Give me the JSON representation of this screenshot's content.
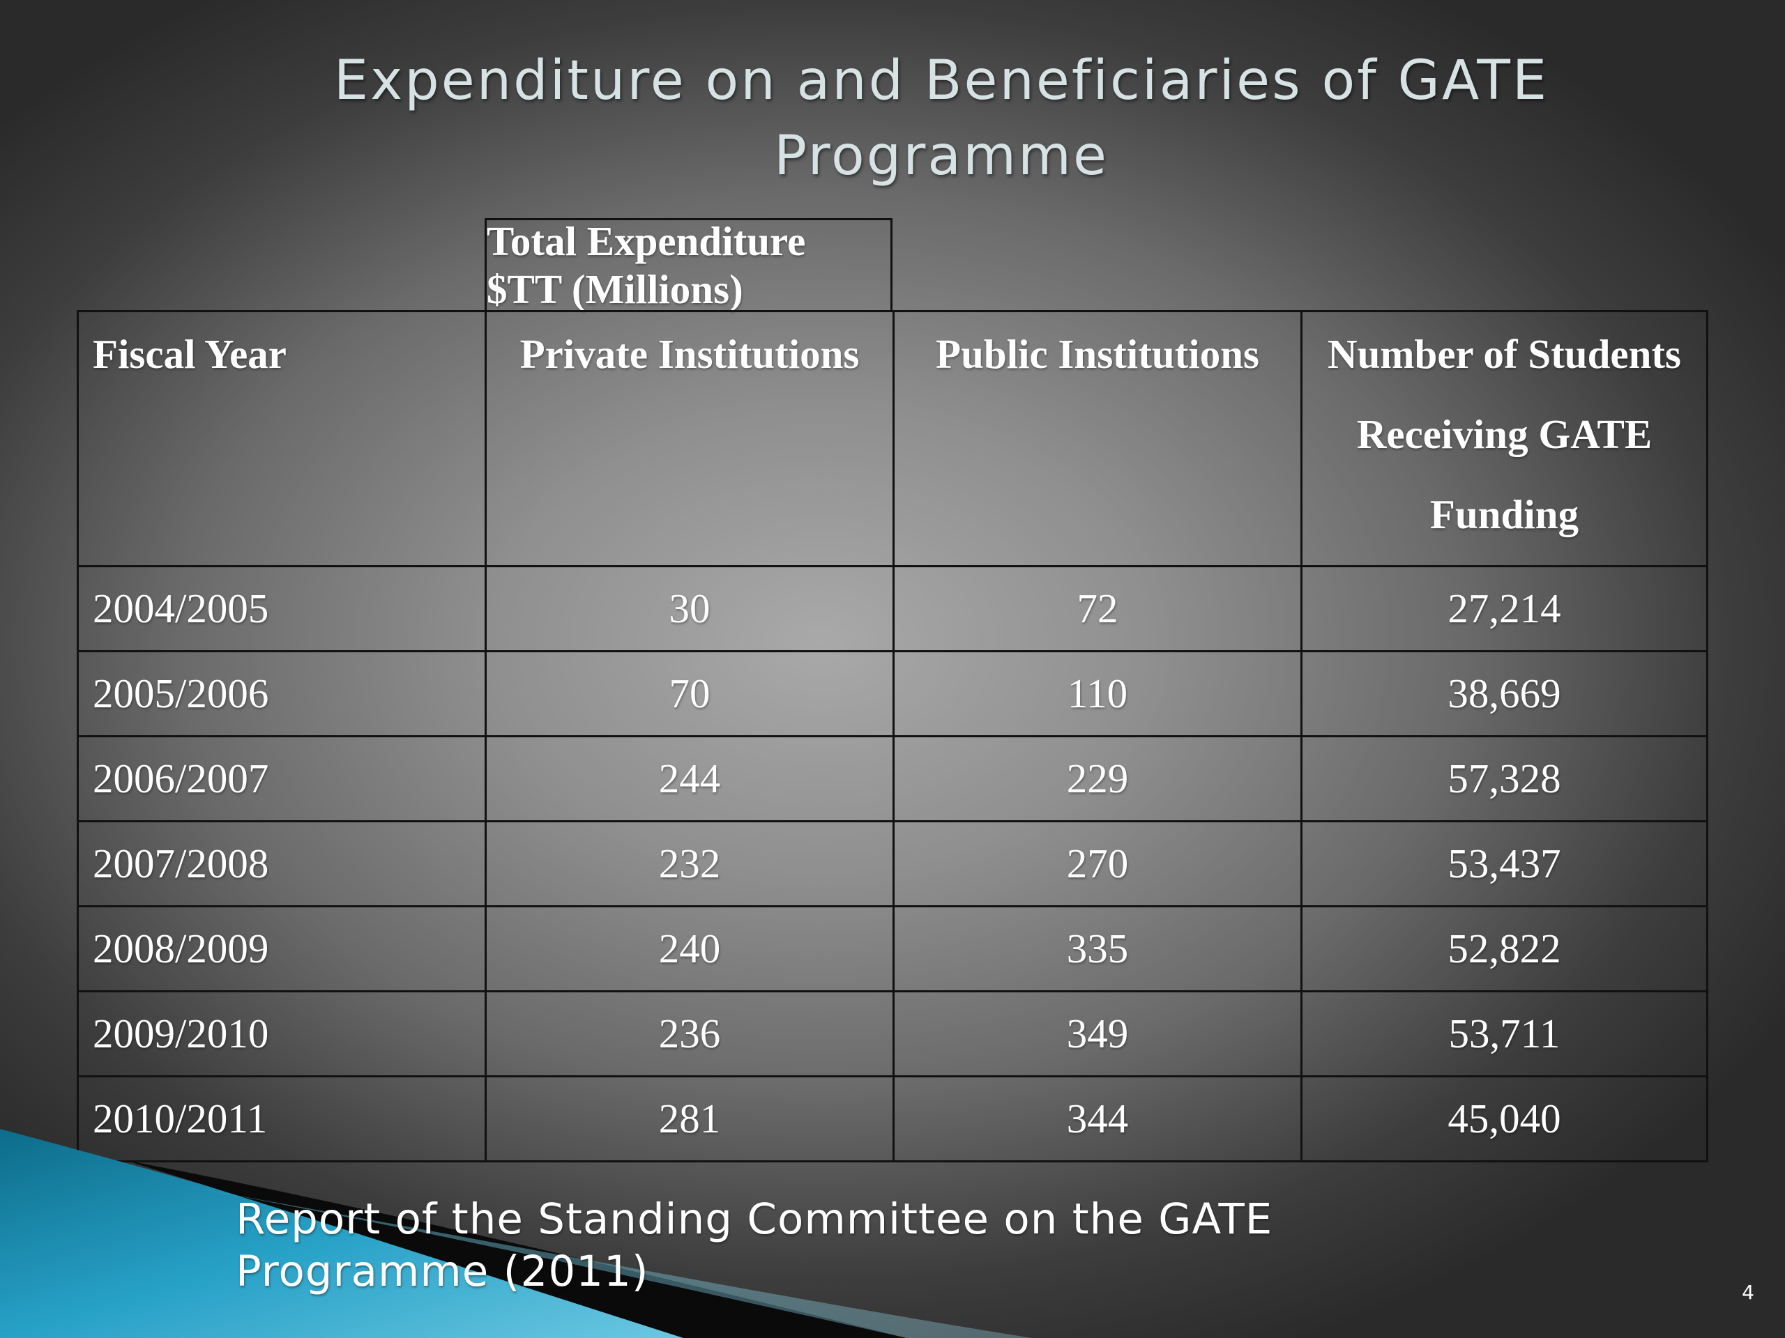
{
  "slide": {
    "title": "Expenditure on and Beneficiaries of GATE Programme",
    "source": "Report of the Standing Committee on the GATE Programme (2011)",
    "page_number": "4"
  },
  "table": {
    "super_header": "Total Expenditure $TT (Millions)",
    "headers": [
      "Fiscal Year",
      "Private Institutions",
      "Public Institutions",
      "Number of Students Receiving GATE Funding"
    ],
    "rows": [
      [
        "2004/2005",
        "30",
        "72",
        "27,214"
      ],
      [
        "2005/2006",
        "70",
        "110",
        "38,669"
      ],
      [
        "2006/2007",
        "244",
        "229",
        "57,328"
      ],
      [
        "2007/2008",
        "232",
        "270",
        "53,437"
      ],
      [
        "2008/2009",
        "240",
        "335",
        "52,822"
      ],
      [
        "2009/2010",
        "236",
        "349",
        "53,711"
      ],
      [
        "2010/2011",
        "281",
        "344",
        "45,040"
      ]
    ]
  },
  "chart_data": {
    "type": "table",
    "title": "Expenditure on and Beneficiaries of GATE Programme",
    "group_header": "Total Expenditure $TT (Millions)",
    "columns": [
      "Fiscal Year",
      "Private Institutions",
      "Public Institutions",
      "Number of Students Receiving GATE Funding"
    ],
    "categories": [
      "2004/2005",
      "2005/2006",
      "2006/2007",
      "2007/2008",
      "2008/2009",
      "2009/2010",
      "2010/2011"
    ],
    "series": [
      {
        "name": "Private Institutions",
        "values": [
          30,
          70,
          244,
          232,
          240,
          236,
          281
        ]
      },
      {
        "name": "Public Institutions",
        "values": [
          72,
          110,
          229,
          270,
          335,
          349,
          344
        ]
      },
      {
        "name": "Number of Students Receiving GATE Funding",
        "values": [
          27214,
          38669,
          57328,
          53437,
          52822,
          53711,
          45040
        ]
      }
    ]
  },
  "colors": {
    "title_text": "#d6e2e3",
    "table_text": "#ffffff",
    "table_border": "#111111",
    "accent_teal": "#1e9fc4"
  }
}
